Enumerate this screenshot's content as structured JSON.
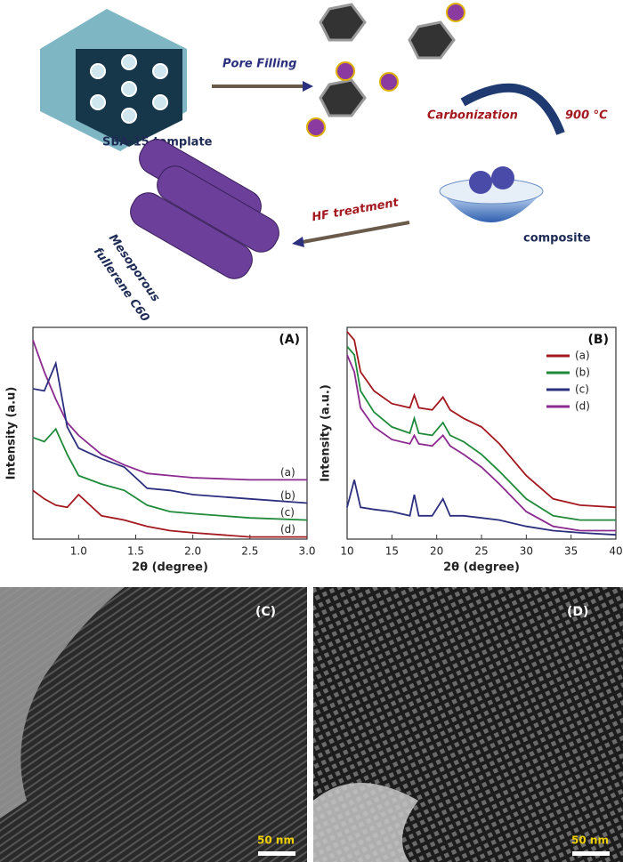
{
  "schematic": {
    "template_label": "SBA-15 template",
    "step1": "Pore Filling",
    "step2": "Carbonization",
    "temperature": "900 °C",
    "step3": "HF treatment",
    "composite_label": "composite",
    "product_label_line1": "Mesoporous",
    "product_label_line2": "fullerene C60"
  },
  "chart_data": [
    {
      "type": "line",
      "panel_label": "(A)",
      "x_label": "2θ (degree)",
      "y_label": "Intensity (a.u)",
      "x": [
        0.6,
        0.7,
        0.8,
        0.9,
        1.0,
        1.2,
        1.4,
        1.6,
        1.8,
        2.0,
        2.5,
        3.0
      ],
      "xlim": [
        0.6,
        3.0
      ],
      "xticks": [
        {
          "value": 1,
          "label": "1.0"
        },
        {
          "value": 1.5,
          "label": "1.5"
        },
        {
          "value": 2,
          "label": "2.0"
        },
        {
          "value": 2.5,
          "label": "2.5"
        },
        {
          "value": 3,
          "label": "3.0"
        }
      ],
      "ylim": [
        0,
        100
      ],
      "legend": "line-end",
      "series": [
        {
          "name": "(a)",
          "color": "#8b2a8f",
          "values": [
            94,
            79,
            66,
            55,
            49,
            40,
            35,
            31,
            30,
            29,
            28,
            28
          ]
        },
        {
          "name": "(b)",
          "color": "#2b2f7e",
          "values": [
            71,
            70,
            83,
            53,
            43,
            38,
            34,
            24,
            23,
            21,
            19,
            17
          ]
        },
        {
          "name": "(c)",
          "color": "#1f8a3a",
          "values": [
            48,
            46,
            52,
            40,
            30,
            26,
            23,
            16,
            13,
            12,
            10,
            9
          ]
        },
        {
          "name": "(d)",
          "color": "#a3191f",
          "values": [
            23,
            19,
            16,
            15,
            21,
            11,
            9,
            6,
            4,
            3,
            1,
            1
          ]
        }
      ]
    },
    {
      "type": "line",
      "panel_label": "(B)",
      "x_label": "2θ (degree)",
      "y_label": "Intensity (a.u.)",
      "x": [
        10,
        10.8,
        11.5,
        13,
        15,
        17,
        17.5,
        18,
        19.5,
        20.7,
        21.5,
        23,
        25,
        27,
        30,
        33,
        36,
        40
      ],
      "xlim": [
        10,
        40
      ],
      "xticks": [
        10,
        15,
        20,
        25,
        30,
        35,
        40
      ],
      "ylim": [
        0,
        100
      ],
      "legend": "top-right",
      "series": [
        {
          "name": "(a)",
          "color": "#a3191f",
          "values": [
            98,
            94,
            79,
            70,
            64,
            62,
            68,
            62,
            61,
            67,
            61,
            57,
            53,
            45,
            30,
            19,
            16,
            15
          ]
        },
        {
          "name": "(b)",
          "color": "#1f8a3a",
          "values": [
            91,
            87,
            70,
            60,
            53,
            50,
            57,
            50,
            49,
            55,
            49,
            46,
            40,
            32,
            19,
            11,
            9,
            9
          ]
        },
        {
          "name": "(c)",
          "color": "#2b2f7e",
          "values": [
            15,
            28,
            15,
            14,
            13,
            11,
            21,
            11,
            11,
            19,
            11,
            11,
            10,
            9,
            6,
            4,
            3,
            2
          ]
        },
        {
          "name": "(d)",
          "color": "#8b2a8f",
          "values": [
            87,
            79,
            62,
            53,
            47,
            45,
            49,
            45,
            44,
            49,
            44,
            40,
            34,
            26,
            13,
            6,
            4,
            4
          ]
        }
      ]
    }
  ],
  "tem": {
    "left_label": "(C)",
    "left_scale": "50 nm",
    "right_label": "(D)",
    "right_scale": "50 nm"
  }
}
